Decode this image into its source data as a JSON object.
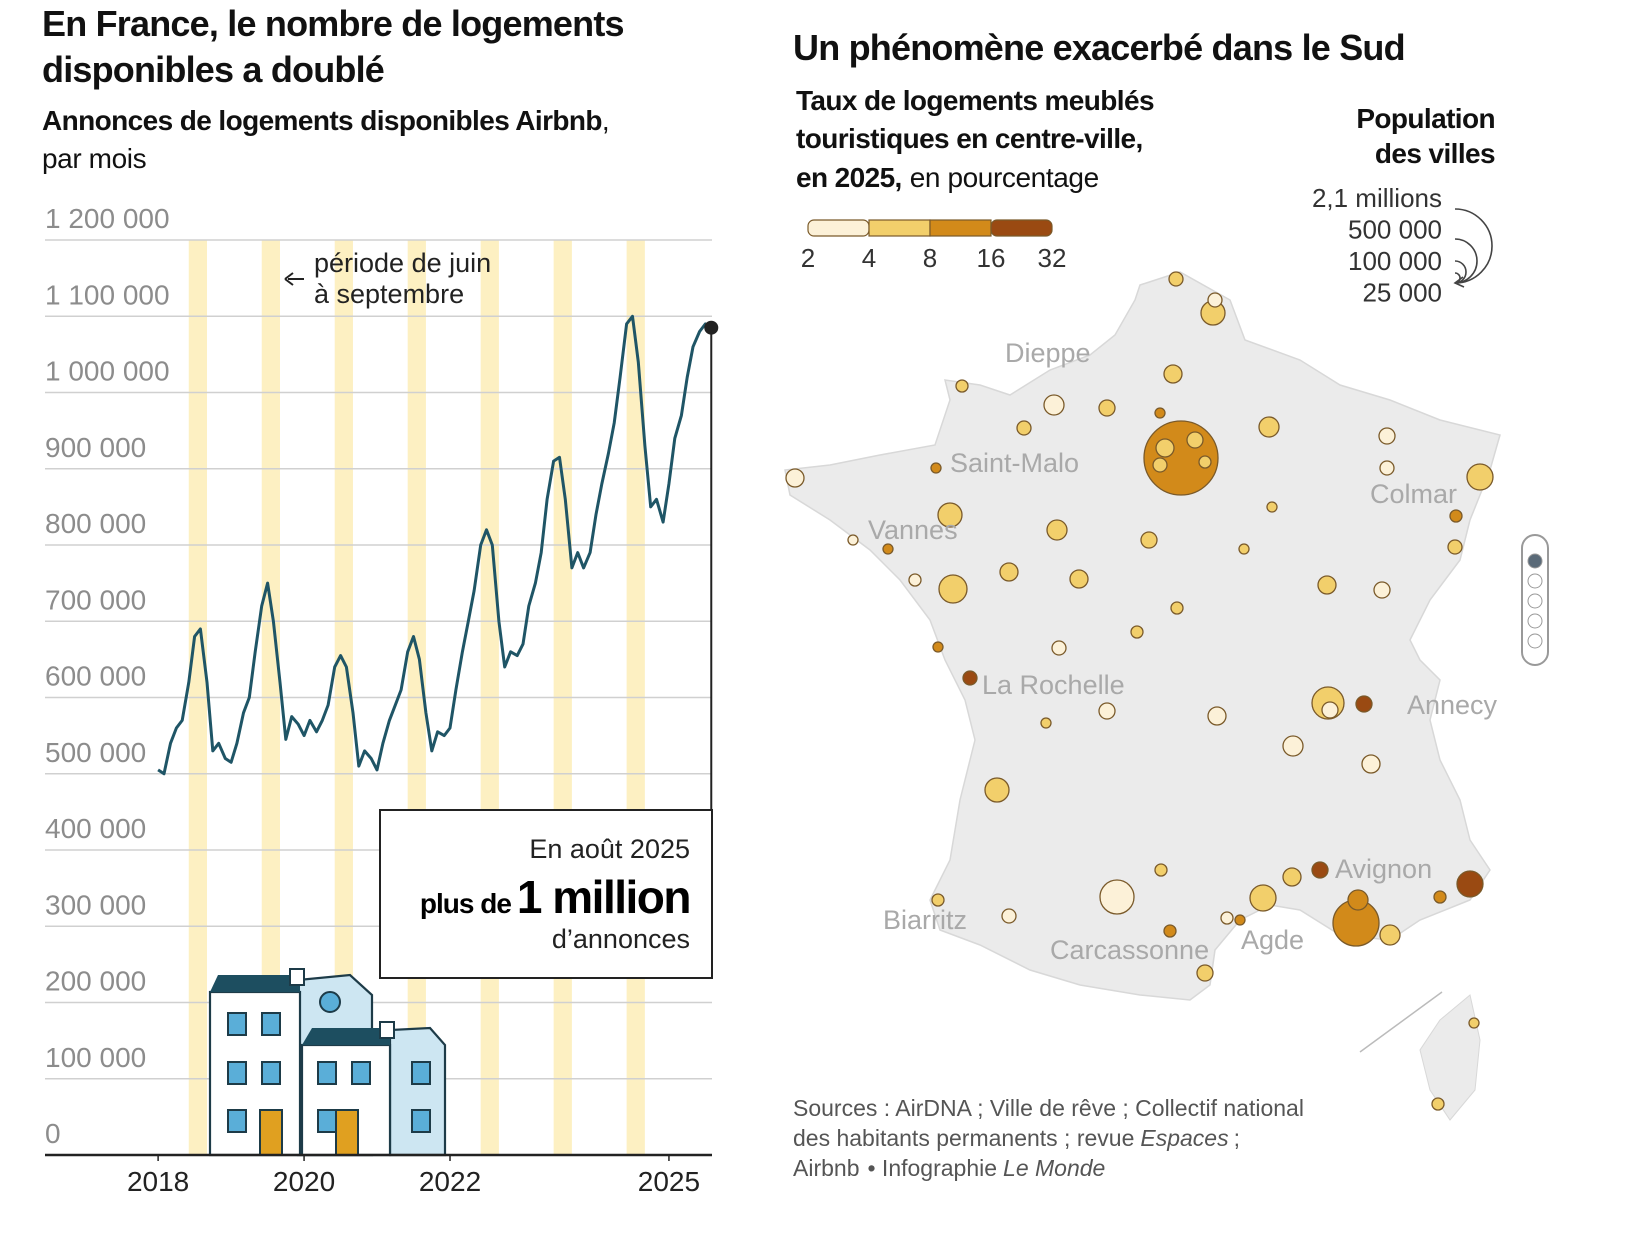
{
  "chart_data": [
    {
      "type": "line",
      "title": [
        "En France, le nombre de logements",
        "disponibles a doublé"
      ],
      "subtitle_bold": "Annonces de logements disponibles Airbnb",
      "subtitle_rest": [
        ",",
        "par mois"
      ],
      "ylim": [
        0,
        1200000
      ],
      "yticks": [
        0,
        {
          "value": 100000,
          "label": "100 000"
        },
        {
          "value": 200000,
          "label": "200 000"
        },
        {
          "value": 300000,
          "label": "300 000"
        },
        {
          "value": 400000,
          "label": "400 000"
        },
        {
          "value": 500000,
          "label": "500 000"
        },
        {
          "value": 600000,
          "label": "600 000"
        },
        {
          "value": 700000,
          "label": "700 000"
        },
        {
          "value": 800000,
          "label": "800 000"
        },
        {
          "value": 900000,
          "label": "900 000"
        },
        {
          "value": 1000000,
          "label": "1 000 000"
        },
        {
          "value": 1100000,
          "label": "1 100 000"
        },
        {
          "value": 1200000,
          "label": "1 200 000"
        }
      ],
      "xlim": [
        2016.45,
        2025.59
      ],
      "xticks": [
        2018,
        2020,
        2022,
        2025
      ],
      "grid": true,
      "color": "#1f5566",
      "highlight_color": "#fdf0c2",
      "highlight_periods": [
        [
          2018.42,
          2018.67
        ],
        [
          2019.42,
          2019.67
        ],
        [
          2020.42,
          2020.67
        ],
        [
          2021.42,
          2021.67
        ],
        [
          2022.42,
          2022.67
        ],
        [
          2023.42,
          2023.67
        ],
        [
          2024.42,
          2024.67
        ]
      ],
      "highlight_label": [
        "période de juin",
        "à septembre"
      ],
      "x": [
        2018,
        2018.08,
        2018.17,
        2018.25,
        2018.33,
        2018.42,
        2018.5,
        2018.58,
        2018.67,
        2018.75,
        2018.83,
        2018.92,
        2019,
        2019.08,
        2019.17,
        2019.25,
        2019.33,
        2019.42,
        2019.5,
        2019.58,
        2019.67,
        2019.75,
        2019.83,
        2019.92,
        2020,
        2020.08,
        2020.17,
        2020.25,
        2020.33,
        2020.42,
        2020.5,
        2020.58,
        2020.67,
        2020.75,
        2020.83,
        2020.92,
        2021,
        2021.08,
        2021.17,
        2021.25,
        2021.33,
        2021.42,
        2021.5,
        2021.58,
        2021.67,
        2021.75,
        2021.83,
        2021.92,
        2022,
        2022.08,
        2022.17,
        2022.25,
        2022.33,
        2022.42,
        2022.5,
        2022.58,
        2022.67,
        2022.75,
        2022.83,
        2022.92,
        2023,
        2023.08,
        2023.17,
        2023.25,
        2023.33,
        2023.42,
        2023.5,
        2023.58,
        2023.67,
        2023.75,
        2023.83,
        2023.92,
        2024,
        2024.08,
        2024.17,
        2024.25,
        2024.33,
        2024.42,
        2024.5,
        2024.58,
        2024.67,
        2024.75,
        2024.83,
        2024.92,
        2025,
        2025.08,
        2025.17,
        2025.25,
        2025.33,
        2025.42,
        2025.5,
        2025.58
      ],
      "values": [
        505000,
        500000,
        540000,
        560000,
        570000,
        620000,
        680000,
        690000,
        620000,
        530000,
        540000,
        520000,
        515000,
        540000,
        580000,
        600000,
        660000,
        720000,
        750000,
        700000,
        620000,
        545000,
        575000,
        565000,
        550000,
        570000,
        555000,
        570000,
        590000,
        640000,
        655000,
        640000,
        580000,
        510000,
        530000,
        520000,
        505000,
        540000,
        570000,
        590000,
        610000,
        660000,
        680000,
        650000,
        580000,
        530000,
        555000,
        550000,
        560000,
        610000,
        660000,
        700000,
        740000,
        800000,
        820000,
        800000,
        700000,
        640000,
        660000,
        655000,
        670000,
        720000,
        750000,
        790000,
        860000,
        910000,
        915000,
        860000,
        770000,
        790000,
        770000,
        790000,
        840000,
        880000,
        920000,
        960000,
        1020000,
        1090000,
        1100000,
        1040000,
        930000,
        850000,
        860000,
        830000,
        880000,
        940000,
        970000,
        1020000,
        1060000,
        1080000,
        1090000,
        1085000
      ],
      "annotation": {
        "line1": "En août 2025",
        "prefix": "plus de",
        "highlight": "1 million",
        "line3": "d’annonces"
      }
    },
    {
      "type": "bubble_map",
      "title": "Un phénomène exacerbé dans le Sud",
      "legend_title": [
        "Taux de logements meublés",
        "touristiques en centre-ville,",
        "en 2025,"
      ],
      "legend_title_rest": "en pourcentage",
      "scale_stops": [
        2,
        4,
        8,
        16,
        32
      ],
      "scale_colors": [
        "#fcf1d8",
        "#f2cf6b",
        "#d28a1a",
        "#9a4a12"
      ],
      "size_title": [
        "Population",
        "des villes"
      ],
      "size_ticks": [
        {
          "value": 2100000,
          "label": "2,1 millions"
        },
        {
          "value": 500000,
          "label": "500 000"
        },
        {
          "value": 100000,
          "label": "100 000"
        },
        {
          "value": 25000,
          "label": "25 000"
        }
      ],
      "cities": [
        "Dieppe",
        "Saint-Malo",
        "Vannes",
        "Colmar",
        "La Rochelle",
        "Annecy",
        "Avignon",
        "Biarritz",
        "Carcassonne",
        "Agde"
      ],
      "sources": {
        "line1": "Sources : AirDNA ; Ville de rêve ; Collectif national",
        "line2": [
          "des habitants permanents ; revue",
          "Espaces",
          ";"
        ],
        "line3": [
          "Airbnb",
          "• Infographie",
          "Le Monde"
        ]
      }
    }
  ]
}
